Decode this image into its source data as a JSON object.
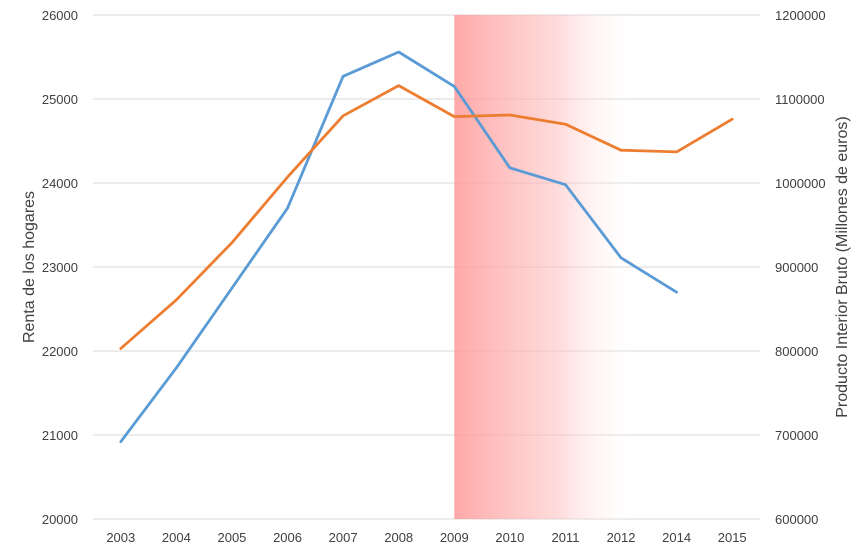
{
  "chart_data": {
    "type": "line",
    "categories": [
      "2003",
      "2004",
      "2005",
      "2006",
      "2007",
      "2008",
      "2009",
      "2010",
      "2011",
      "2012",
      "2014",
      "2015"
    ],
    "y_left": {
      "label": "Renta de los  hogares",
      "range": [
        20000,
        26000
      ],
      "ticks": [
        "20000",
        "21000",
        "22000",
        "23000",
        "24000",
        "25000",
        "26000"
      ]
    },
    "y_right": {
      "label": "Producto Interior Bruto (Millones de euros)",
      "range": [
        600000,
        1200000
      ],
      "ticks": [
        "600000",
        "700000",
        "800000",
        "900000",
        "1000000",
        "1100000",
        "1200000"
      ]
    },
    "series": [
      {
        "axis": "left",
        "color": "#5b9bd5",
        "values": [
          20920,
          21800,
          22750,
          23700,
          25270,
          25560,
          25150,
          24180,
          23980,
          23110,
          22700,
          null
        ]
      },
      {
        "axis": "right",
        "color": "#ed7d31",
        "values": [
          803000,
          861000,
          929000,
          1007000,
          1080000,
          1116000,
          1079000,
          1081000,
          1070000,
          1039000,
          1037000,
          1076000
        ]
      }
    ],
    "highlight": {
      "from_category": "2009",
      "color": "#ff9999"
    },
    "grid": true,
    "legend": "none"
  }
}
